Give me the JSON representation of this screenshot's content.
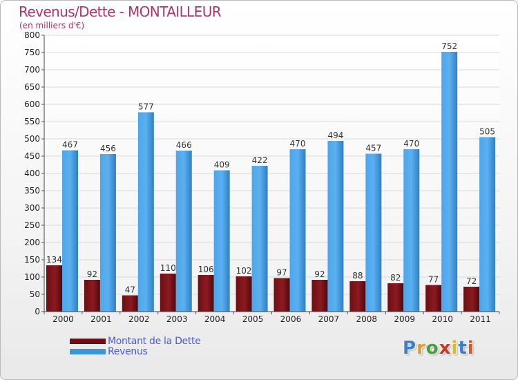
{
  "title": "Revenus/Dette - MONTAILLEUR",
  "subtitle": "(en milliers d'€)",
  "colors": {
    "title": "#b0336a",
    "dette": "#6b0f14",
    "revenus": "#3d95dc",
    "legend_text": "#4b5bd6"
  },
  "legend": [
    {
      "label": "Montant de la Dette",
      "color": "#6b0f14"
    },
    {
      "label": "Revenus",
      "color": "#3d95dc"
    }
  ],
  "logo": {
    "text": "Proxiti",
    "letters": [
      "P",
      "r",
      "o",
      "x",
      "i",
      "t",
      "i"
    ],
    "colors": [
      "#3c7fc4",
      "#e89a26",
      "#4a9d3a",
      "#c93a2a",
      "#e0b820",
      "#3c7fc4",
      "#d9541e"
    ]
  },
  "chart_data": {
    "type": "bar",
    "categories": [
      "2000",
      "2001",
      "2002",
      "2003",
      "2004",
      "2005",
      "2006",
      "2007",
      "2008",
      "2009",
      "2010",
      "2011"
    ],
    "series": [
      {
        "name": "Montant de la Dette",
        "values": [
          134,
          92,
          47,
          110,
          106,
          102,
          97,
          92,
          88,
          82,
          77,
          72
        ]
      },
      {
        "name": "Revenus",
        "values": [
          467,
          456,
          577,
          466,
          409,
          422,
          470,
          494,
          457,
          470,
          752,
          505
        ]
      }
    ],
    "yticks": [
      0,
      50,
      100,
      150,
      200,
      250,
      300,
      350,
      400,
      450,
      500,
      550,
      600,
      650,
      700,
      750,
      800
    ],
    "ylim": [
      0,
      800
    ],
    "grid": true,
    "legend_position": "bottom-left"
  }
}
